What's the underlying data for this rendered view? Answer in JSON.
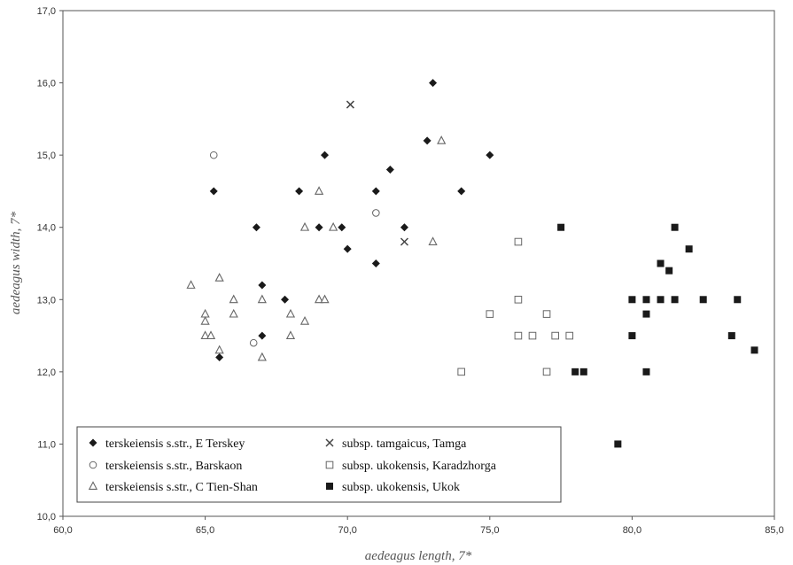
{
  "chart_data": {
    "type": "scatter",
    "title": "",
    "xlabel": "aedeagus length, 7*",
    "ylabel": "aedeagus width, 7*",
    "xlim": [
      60.0,
      85.0
    ],
    "ylim": [
      10.0,
      17.0
    ],
    "x_ticks": [
      "60,0",
      "65,0",
      "70,0",
      "75,0",
      "80,0",
      "85,0"
    ],
    "y_ticks": [
      "10,0",
      "11,0",
      "12,0",
      "13,0",
      "14,0",
      "15,0",
      "16,0",
      "17,0"
    ],
    "grid": false,
    "legend_position": "bottom-left",
    "series": [
      {
        "name": "terskeiensis s.str., E Terskey",
        "marker": "diamond-filled",
        "points": [
          [
            65.3,
            14.5
          ],
          [
            66.8,
            14.0
          ],
          [
            65.5,
            12.2
          ],
          [
            67.0,
            13.2
          ],
          [
            67.0,
            12.5
          ],
          [
            67.8,
            13.0
          ],
          [
            68.3,
            14.5
          ],
          [
            69.2,
            15.0
          ],
          [
            69.0,
            14.0
          ],
          [
            69.8,
            14.0
          ],
          [
            70.0,
            13.7
          ],
          [
            71.0,
            14.5
          ],
          [
            71.5,
            14.8
          ],
          [
            71.0,
            13.5
          ],
          [
            72.0,
            14.0
          ],
          [
            72.8,
            15.2
          ],
          [
            73.0,
            16.0
          ],
          [
            74.0,
            14.5
          ],
          [
            75.0,
            15.0
          ]
        ]
      },
      {
        "name": "terskeiensis s.str., Barskaon",
        "marker": "circle-open",
        "points": [
          [
            65.3,
            15.0
          ],
          [
            66.7,
            12.4
          ],
          [
            71.0,
            14.2
          ]
        ]
      },
      {
        "name": "terskeiensis s.str., C Tien-Shan",
        "marker": "triangle-open",
        "points": [
          [
            64.5,
            13.2
          ],
          [
            65.0,
            12.8
          ],
          [
            65.0,
            12.7
          ],
          [
            65.0,
            12.5
          ],
          [
            65.2,
            12.5
          ],
          [
            65.5,
            13.3
          ],
          [
            65.5,
            12.3
          ],
          [
            66.0,
            13.0
          ],
          [
            66.0,
            12.8
          ],
          [
            67.0,
            13.0
          ],
          [
            67.0,
            12.2
          ],
          [
            68.0,
            12.8
          ],
          [
            68.0,
            12.5
          ],
          [
            68.5,
            14.0
          ],
          [
            68.5,
            12.7
          ],
          [
            69.0,
            14.5
          ],
          [
            69.0,
            13.0
          ],
          [
            69.2,
            13.0
          ],
          [
            69.5,
            14.0
          ],
          [
            73.0,
            13.8
          ],
          [
            73.3,
            15.2
          ]
        ]
      },
      {
        "name": "subsp. tamgaicus, Tamga",
        "marker": "x",
        "points": [
          [
            70.1,
            15.7
          ],
          [
            72.0,
            13.8
          ]
        ]
      },
      {
        "name": "subsp. ukokensis, Karadzhorga",
        "marker": "square-open",
        "points": [
          [
            74.0,
            12.0
          ],
          [
            75.0,
            12.8
          ],
          [
            76.0,
            13.8
          ],
          [
            76.0,
            13.0
          ],
          [
            76.0,
            12.5
          ],
          [
            76.5,
            12.5
          ],
          [
            77.0,
            12.8
          ],
          [
            77.0,
            12.0
          ],
          [
            77.3,
            12.5
          ],
          [
            77.8,
            12.5
          ]
        ]
      },
      {
        "name": "subsp. ukokensis, Ukok",
        "marker": "square-filled",
        "points": [
          [
            77.5,
            14.0
          ],
          [
            78.0,
            12.0
          ],
          [
            78.3,
            12.0
          ],
          [
            79.5,
            11.0
          ],
          [
            80.0,
            13.0
          ],
          [
            80.0,
            12.5
          ],
          [
            80.5,
            13.0
          ],
          [
            80.5,
            12.8
          ],
          [
            80.5,
            12.0
          ],
          [
            81.0,
            13.5
          ],
          [
            81.0,
            13.0
          ],
          [
            81.3,
            13.4
          ],
          [
            81.5,
            14.0
          ],
          [
            81.5,
            13.0
          ],
          [
            82.0,
            13.7
          ],
          [
            82.5,
            13.0
          ],
          [
            83.5,
            12.5
          ],
          [
            83.7,
            13.0
          ],
          [
            84.3,
            12.3
          ]
        ]
      }
    ]
  },
  "colors": {
    "marker_dark": "#1a1a1a",
    "marker_light": "#666666",
    "axis": "#555555"
  }
}
